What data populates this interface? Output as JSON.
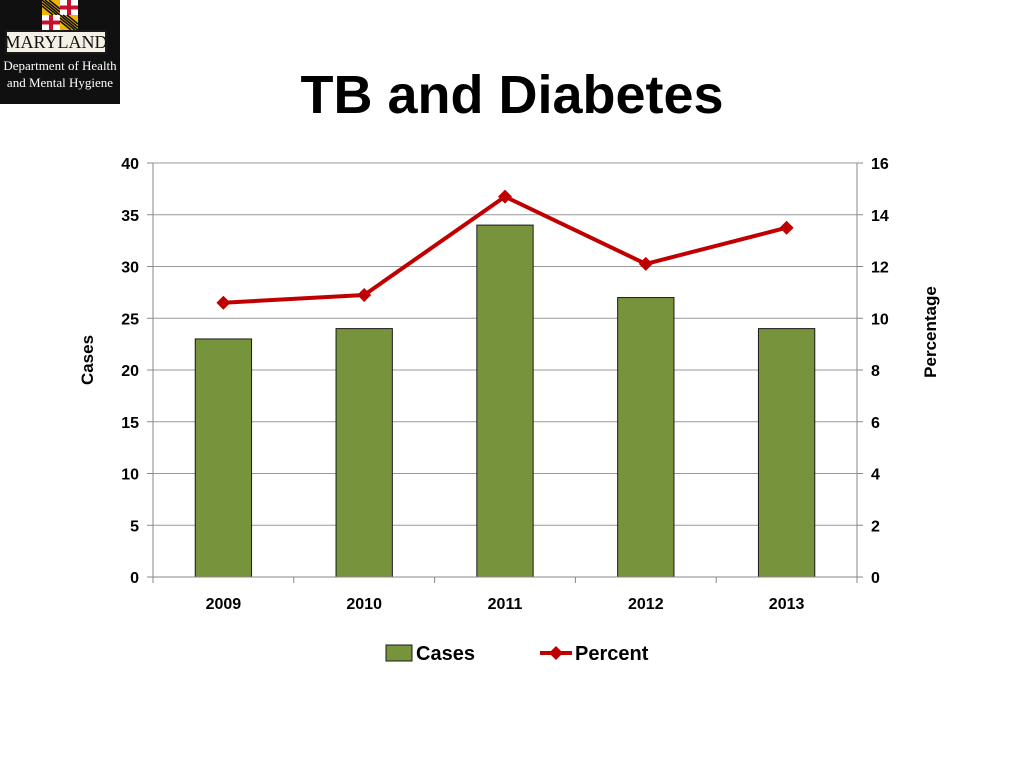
{
  "logo": {
    "banner": "MARYLAND",
    "line1": "Department of Health",
    "line2": "and Mental Hygiene"
  },
  "title": "TB and Diabetes",
  "colors": {
    "bar": "#77933C",
    "bar_border": "#1a1a1a",
    "line": "#C00000",
    "grid": "#999999"
  },
  "chart_data": {
    "type": "bar",
    "categories": [
      "2009",
      "2010",
      "2011",
      "2012",
      "2013"
    ],
    "series": [
      {
        "name": "Cases",
        "type": "bar",
        "axis": "left",
        "values": [
          23,
          24,
          34,
          27,
          24
        ]
      },
      {
        "name": "Percent",
        "type": "line",
        "axis": "right",
        "marker": "diamond",
        "values": [
          10.6,
          10.9,
          14.7,
          12.1,
          13.5
        ]
      }
    ],
    "ylabel": "Cases",
    "y2label": "Percentage",
    "ylim": [
      0,
      40
    ],
    "y2lim": [
      0,
      16
    ],
    "yticks": [
      "0",
      "5",
      "10",
      "15",
      "20",
      "25",
      "30",
      "35",
      "40"
    ],
    "y2ticks": [
      "0",
      "2",
      "4",
      "6",
      "8",
      "10",
      "12",
      "14",
      "16"
    ],
    "grid": true,
    "legend_position": "bottom"
  }
}
